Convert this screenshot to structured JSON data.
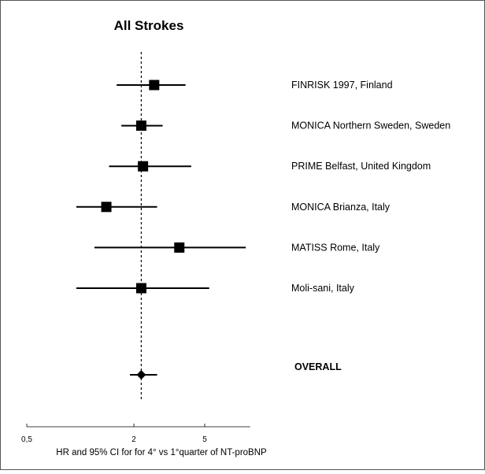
{
  "chart_data": {
    "type": "forest",
    "title": "All Strokes",
    "xlabel": "HR and 95% CI for for 4° vs 1°quarter of NT-proBNP",
    "ylabel": "",
    "x_scale": "log",
    "xlim": [
      0.5,
      9
    ],
    "x_ticks": [
      {
        "value": 0.5,
        "label": "0,5"
      },
      {
        "value": 2,
        "label": "2"
      },
      {
        "value": 5,
        "label": "5"
      }
    ],
    "reference_line": {
      "value": 2.2,
      "style": "dashed"
    },
    "grid": false,
    "studies": [
      {
        "name": "FINRISK 1997,  Finland",
        "hr": 2.6,
        "ci": [
          1.6,
          3.9
        ]
      },
      {
        "name": "MONICA Northern Sweden, Sweden",
        "hr": 2.2,
        "ci": [
          1.7,
          2.9
        ]
      },
      {
        "name": "PRIME Belfast, United Kingdom",
        "hr": 2.25,
        "ci": [
          1.45,
          4.2
        ]
      },
      {
        "name": "MONICA Brianza, Italy",
        "hr": 1.4,
        "ci": [
          0.95,
          2.7
        ]
      },
      {
        "name": "MATISS Rome, Italy",
        "hr": 3.6,
        "ci": [
          1.2,
          8.5
        ]
      },
      {
        "name": "Moli-sani, Italy",
        "hr": 2.2,
        "ci": [
          0.95,
          5.3
        ]
      }
    ],
    "overall": {
      "name": "OVERALL",
      "hr": 2.2,
      "ci": [
        1.9,
        2.7
      ]
    }
  }
}
